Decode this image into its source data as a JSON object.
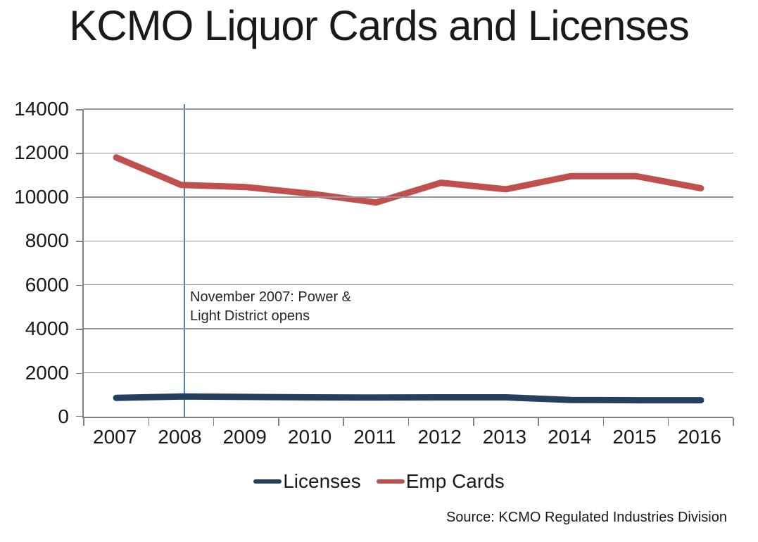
{
  "chart_data": {
    "type": "line",
    "title": "KCMO Liquor Cards and Licenses",
    "categories": [
      "2007",
      "2008",
      "2009",
      "2010",
      "2011",
      "2012",
      "2013",
      "2014",
      "2015",
      "2016"
    ],
    "series": [
      {
        "name": "Licenses",
        "color": "#24405E",
        "values": [
          860,
          920,
          900,
          880,
          870,
          880,
          880,
          760,
          750,
          750
        ]
      },
      {
        "name": "Emp Cards",
        "color": "#C0504D",
        "values": [
          11800,
          10550,
          10450,
          10150,
          9750,
          10650,
          10350,
          10950,
          10950,
          10400
        ]
      }
    ],
    "ylim": [
      0,
      14000
    ],
    "ytick_step": 2000,
    "grid": true,
    "legend_position": "bottom",
    "annotation": {
      "text": "November 2007: Power &\nLight District opens",
      "marker_year": "2008",
      "marker_color": "#4F81BD"
    },
    "source": "Source: KCMO Regulated Industries Division",
    "axis_color": "#808080",
    "gridline_color": "#969696",
    "text_color": "#1a1a1a"
  }
}
